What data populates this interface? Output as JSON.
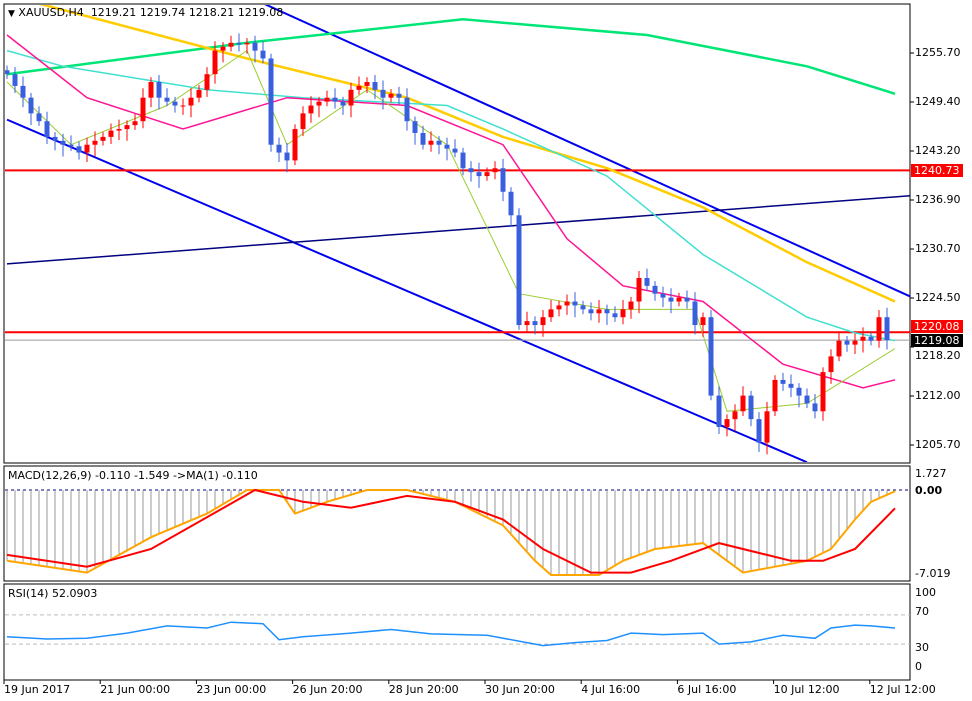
{
  "header": {
    "symbol": "XAUUSD,H4",
    "open": "1219.21",
    "high": "1219.74",
    "low": "1218.21",
    "close": "1219.08"
  },
  "colors": {
    "bull": "#ff0000",
    "bear": "#3a5fdc",
    "ma_green": "#00e676",
    "ma_yellow": "#ffcc00",
    "ma_cyan": "#40e0d0",
    "ma_magenta": "#ff1493",
    "ma_olive": "#9acd32",
    "trend_blue": "#0000ee",
    "trend_navy": "#000080",
    "level_red": "#ff0000",
    "macd_orange": "#ffa500",
    "macd_red": "#ff0000",
    "rsi": "#1e90ff"
  },
  "price_axis": [
    "1255.70",
    "1249.40",
    "1243.20",
    "1236.90",
    "1230.70",
    "1224.50",
    "1218.20",
    "1212.00",
    "1205.70"
  ],
  "tags": {
    "level_high": "1240.73",
    "level_low": "1220.08",
    "current": "1219.08"
  },
  "time_axis": [
    "19 Jun 2017",
    "21 Jun 00:00",
    "23 Jun 00:00",
    "26 Jun 20:00",
    "28 Jun 20:00",
    "30 Jun 20:00",
    "4 Jul 16:00",
    "6 Jul 16:00",
    "10 Jul 12:00",
    "12 Jul 12:00"
  ],
  "macd": {
    "label": "MACD(12,26,9) -0.110 -1.549  ->MA(1) -0.110",
    "axis": [
      "1.727",
      "0.00",
      "-7.019"
    ]
  },
  "rsi": {
    "label": "RSI(14) 52.0903",
    "axis": [
      "100",
      "70",
      "30",
      "0"
    ]
  },
  "chart_data": {
    "type": "candlestick",
    "ylim": [
      1203,
      1262
    ],
    "closes": [
      1253,
      1251.5,
      1250,
      1248,
      1247,
      1245,
      1244.5,
      1244,
      1243.8,
      1243,
      1244,
      1244.5,
      1245,
      1245.8,
      1246,
      1246.5,
      1247,
      1250,
      1252,
      1250,
      1249.5,
      1249,
      1249,
      1250,
      1251,
      1253,
      1256,
      1256.5,
      1257,
      1256.8,
      1257,
      1256,
      1255,
      1244,
      1243,
      1242,
      1246,
      1248,
      1249,
      1249.5,
      1250,
      1249.5,
      1249,
      1251,
      1251.5,
      1252,
      1251,
      1250,
      1250.5,
      1250,
      1247,
      1245.5,
      1244,
      1244.5,
      1244,
      1243.5,
      1243,
      1241,
      1240.5,
      1240,
      1240.5,
      1241,
      1238,
      1235,
      1221,
      1221.5,
      1221,
      1222,
      1223,
      1223.5,
      1224,
      1223.5,
      1223,
      1222.5,
      1223,
      1222.5,
      1222,
      1223,
      1224,
      1227,
      1226,
      1225,
      1224.5,
      1224,
      1224.5,
      1224,
      1221,
      1222,
      1212,
      1208,
      1209,
      1210,
      1212,
      1209,
      1206,
      1210,
      1214,
      1213.5,
      1213,
      1212,
      1211,
      1210,
      1215,
      1217,
      1219,
      1218.5,
      1219,
      1219.5,
      1219,
      1222,
      1219.08
    ],
    "moving_averages": {
      "green": [
        [
          0,
          1253
        ],
        [
          30,
          1257
        ],
        [
          57,
          1260
        ],
        [
          80,
          1258
        ],
        [
          100,
          1254
        ],
        [
          111,
          1250.5
        ]
      ],
      "yellow": [
        [
          4,
          1262
        ],
        [
          30,
          1255
        ],
        [
          50,
          1250
        ],
        [
          62,
          1245
        ],
        [
          75,
          1241
        ],
        [
          87,
          1236
        ],
        [
          100,
          1229
        ],
        [
          111,
          1224
        ]
      ],
      "cyan": [
        [
          0,
          1256
        ],
        [
          7,
          1254
        ],
        [
          25,
          1251
        ],
        [
          37,
          1250
        ],
        [
          55,
          1249
        ],
        [
          62,
          1246
        ],
        [
          75,
          1240
        ],
        [
          87,
          1230
        ],
        [
          100,
          1222
        ],
        [
          106,
          1220
        ],
        [
          111,
          1219
        ]
      ],
      "magenta": [
        [
          0,
          1258
        ],
        [
          10,
          1250
        ],
        [
          22,
          1246
        ],
        [
          35,
          1250
        ],
        [
          50,
          1249
        ],
        [
          62,
          1244
        ],
        [
          70,
          1232
        ],
        [
          77,
          1226
        ],
        [
          87,
          1224
        ],
        [
          97,
          1216
        ],
        [
          107,
          1213
        ],
        [
          111,
          1214
        ]
      ],
      "olive": [
        [
          0,
          1252
        ],
        [
          8,
          1244
        ],
        [
          20,
          1249
        ],
        [
          30,
          1256
        ],
        [
          35,
          1244
        ],
        [
          45,
          1251
        ],
        [
          55,
          1244
        ],
        [
          64,
          1225
        ],
        [
          75,
          1223
        ],
        [
          86,
          1223
        ],
        [
          90,
          1210
        ],
        [
          100,
          1211
        ],
        [
          111,
          1218
        ]
      ]
    },
    "trendlines": {
      "upper": [
        [
          31,
          1262.5
        ],
        [
          113,
          1224.6
        ]
      ],
      "lower": [
        [
          0,
          1247.2
        ],
        [
          100,
          1203.5
        ]
      ],
      "mid": [
        [
          0,
          1228.8
        ],
        [
          113,
          1237.5
        ]
      ]
    },
    "levels": [
      1240.73,
      1220.08
    ],
    "macd_ylim": [
      -7.5,
      2.3
    ],
    "macd_main": [
      [
        0,
        -6
      ],
      [
        10,
        -7
      ],
      [
        18,
        -4
      ],
      [
        25,
        -2
      ],
      [
        30,
        0
      ],
      [
        34,
        0
      ],
      [
        36,
        -2
      ],
      [
        40,
        -1
      ],
      [
        45,
        0
      ],
      [
        50,
        0
      ],
      [
        56,
        -1
      ],
      [
        62,
        -3
      ],
      [
        66,
        -6
      ],
      [
        68,
        -7.2
      ],
      [
        74,
        -7.2
      ],
      [
        77,
        -6
      ],
      [
        81,
        -5
      ],
      [
        87,
        -4.5
      ],
      [
        92,
        -7
      ],
      [
        96,
        -6.5
      ],
      [
        100,
        -6
      ],
      [
        103,
        -5
      ],
      [
        106,
        -2.5
      ],
      [
        108,
        -1
      ],
      [
        111,
        -0.11
      ]
    ],
    "macd_signal": [
      [
        0,
        -5.5
      ],
      [
        10,
        -6.5
      ],
      [
        18,
        -5
      ],
      [
        31,
        0
      ],
      [
        37,
        -1
      ],
      [
        43,
        -1.5
      ],
      [
        50,
        -0.5
      ],
      [
        56,
        -1
      ],
      [
        62,
        -2.5
      ],
      [
        67,
        -5
      ],
      [
        73,
        -7
      ],
      [
        78,
        -7
      ],
      [
        83,
        -6
      ],
      [
        89,
        -4.5
      ],
      [
        95,
        -5.5
      ],
      [
        98,
        -6
      ],
      [
        102,
        -6
      ],
      [
        106,
        -5
      ],
      [
        111,
        -1.55
      ]
    ],
    "rsi": [
      [
        0,
        40
      ],
      [
        5,
        37
      ],
      [
        10,
        38
      ],
      [
        15,
        45
      ],
      [
        20,
        55
      ],
      [
        25,
        52
      ],
      [
        28,
        60
      ],
      [
        32,
        58
      ],
      [
        34,
        36
      ],
      [
        37,
        40
      ],
      [
        43,
        45
      ],
      [
        48,
        50
      ],
      [
        53,
        44
      ],
      [
        60,
        42
      ],
      [
        65,
        32
      ],
      [
        67,
        28
      ],
      [
        71,
        32
      ],
      [
        75,
        35
      ],
      [
        78,
        45
      ],
      [
        82,
        43
      ],
      [
        87,
        45
      ],
      [
        89,
        30
      ],
      [
        93,
        33
      ],
      [
        97,
        42
      ],
      [
        101,
        38
      ],
      [
        103,
        52
      ],
      [
        106,
        56
      ],
      [
        108,
        55
      ],
      [
        111,
        52
      ]
    ]
  }
}
